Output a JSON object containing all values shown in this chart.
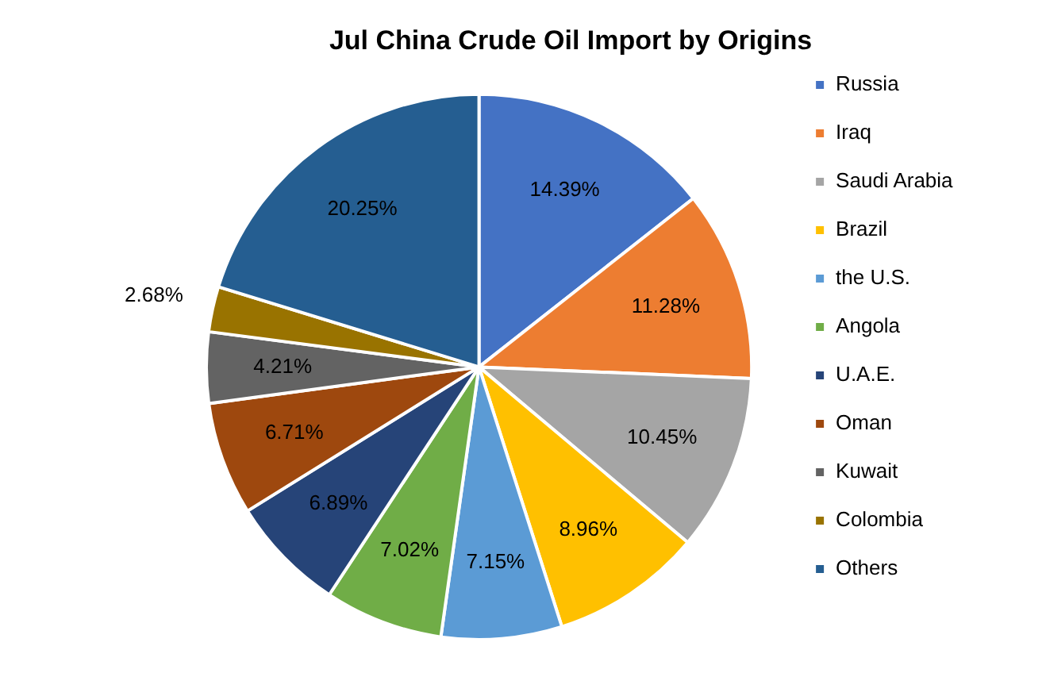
{
  "chart_data": {
    "type": "pie",
    "title": "Jul China Crude Oil Import by Origins",
    "categories": [
      "Russia",
      "Iraq",
      "Saudi Arabia",
      "Brazil",
      "the U.S.",
      "Angola",
      "U.A.E.",
      "Oman",
      "Kuwait",
      "Colombia",
      "Others"
    ],
    "values": [
      14.39,
      11.28,
      10.45,
      8.96,
      7.15,
      7.02,
      6.89,
      6.71,
      4.21,
      2.68,
      20.25
    ],
    "value_labels": [
      "14.39%",
      "11.28%",
      "10.45%",
      "8.96%",
      "7.15%",
      "7.02%",
      "6.89%",
      "6.71%",
      "4.21%",
      "2.68%",
      "20.25%"
    ],
    "colors": [
      "#4472c4",
      "#ed7d31",
      "#a5a5a5",
      "#ffc000",
      "#5b9bd5",
      "#70ad47",
      "#264478",
      "#9e480e",
      "#636363",
      "#997300",
      "#255e91"
    ],
    "legend": "right"
  }
}
